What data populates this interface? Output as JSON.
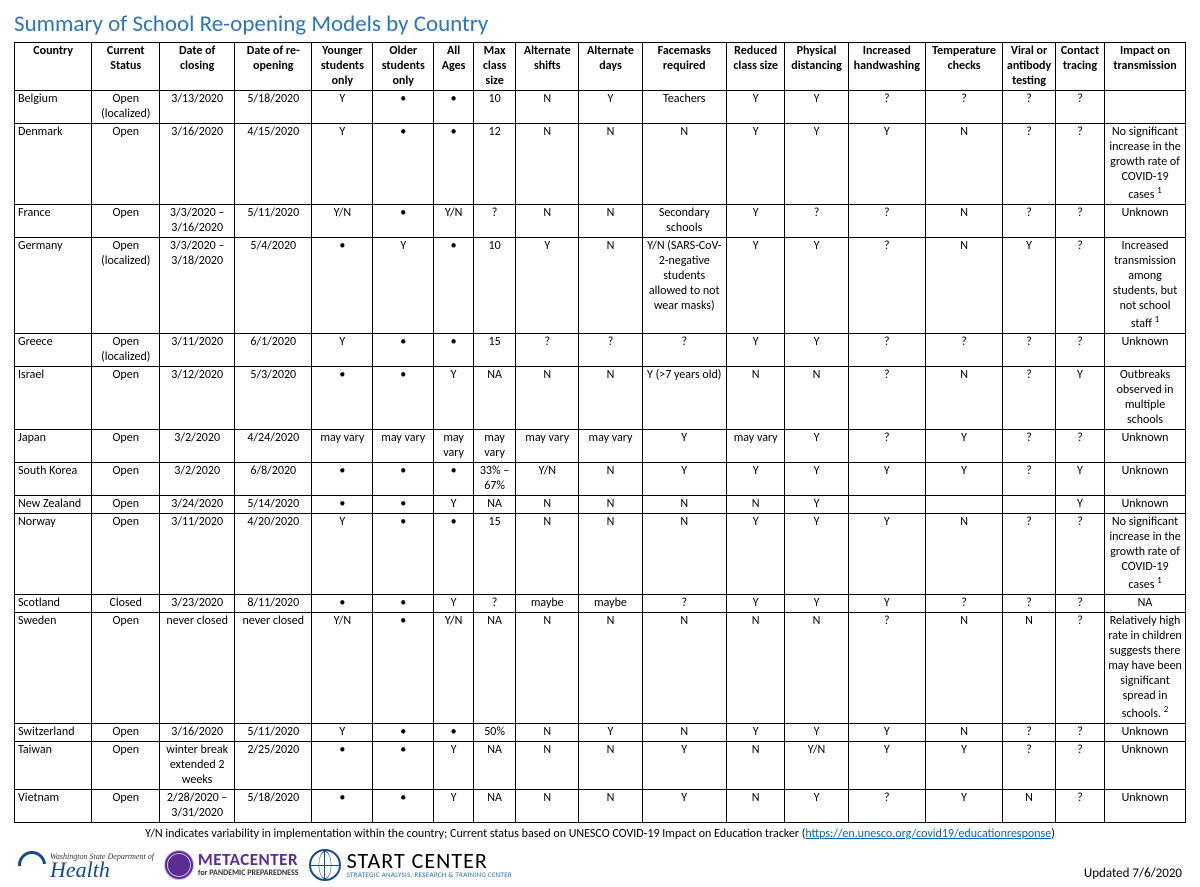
{
  "title": "Summary of School Re-opening Models by Country",
  "columns": [
    "Country",
    "Current Status",
    "Date of closing",
    "Date of re-opening",
    "Younger students only",
    "Older students only",
    "All Ages",
    "Max class size",
    "Alternate shifts",
    "Alternate days",
    "Facemasks required",
    "Reduced class size",
    "Physical distancing",
    "Increased handwashing",
    "Temperature checks",
    "Viral or antibody testing",
    "Contact tracing",
    "Impact on transmission"
  ],
  "col_widths_pct": [
    6.6,
    5.8,
    6.4,
    6.6,
    5.2,
    5.2,
    3.4,
    3.6,
    5.4,
    5.4,
    7.2,
    5.0,
    5.4,
    6.6,
    6.6,
    4.5,
    4.2,
    6.9
  ],
  "rows": [
    [
      "Belgium",
      "Open (localized)",
      "3/13/2020",
      "5/18/2020",
      "Y",
      "•",
      "•",
      "10",
      "N",
      "Y",
      "Teachers",
      "Y",
      "Y",
      "?",
      "?",
      "?",
      "?",
      ""
    ],
    [
      "Denmark",
      "Open",
      "3/16/2020",
      "4/15/2020",
      "Y",
      "•",
      "•",
      "12",
      "N",
      "N",
      "N",
      "Y",
      "Y",
      "Y",
      "N",
      "?",
      "?",
      "No significant increase in the growth rate of COVID-19 cases ¹"
    ],
    [
      "France",
      "Open",
      "3/3/2020 – 3/16/2020",
      "5/11/2020",
      "Y/N",
      "•",
      "Y/N",
      "?",
      "N",
      "N",
      "Secondary schools",
      "Y",
      "?",
      "?",
      "N",
      "?",
      "?",
      "Unknown"
    ],
    [
      "Germany",
      "Open (localized)",
      "3/3/2020 – 3/18/2020",
      "5/4/2020",
      "•",
      "Y",
      "•",
      "10",
      "Y",
      "N",
      "Y/N (SARS-CoV-2-negative students allowed to not wear masks)",
      "Y",
      "Y",
      "?",
      "N",
      "Y",
      "?",
      "Increased transmission among students, but not school staff ¹"
    ],
    [
      "Greece",
      "Open (localized)",
      "3/11/2020",
      "6/1/2020",
      "Y",
      "•",
      "•",
      "15",
      "?",
      "?",
      "?",
      "Y",
      "Y",
      "?",
      "?",
      "?",
      "?",
      "Unknown"
    ],
    [
      "Israel",
      "Open",
      "3/12/2020",
      "5/3/2020",
      "•",
      "•",
      "Y",
      "NA",
      "N",
      "N",
      "Y (>7 years old)",
      "N",
      "N",
      "?",
      "N",
      "?",
      "Y",
      "Outbreaks observed in multiple schools"
    ],
    [
      "Japan",
      "Open",
      "3/2/2020",
      "4/24/2020",
      "may vary",
      "may vary",
      "may vary",
      "may vary",
      "may vary",
      "may vary",
      "Y",
      "may vary",
      "Y",
      "?",
      "Y",
      "?",
      "?",
      "Unknown"
    ],
    [
      "South Korea",
      "Open",
      "3/2/2020",
      "6/8/2020",
      "•",
      "•",
      "•",
      "33% – 67%",
      "Y/N",
      "N",
      "Y",
      "Y",
      "Y",
      "Y",
      "Y",
      "?",
      "Y",
      "Unknown"
    ],
    [
      "New Zealand",
      "Open",
      "3/24/2020",
      "5/14/2020",
      "•",
      "•",
      "Y",
      "NA",
      "N",
      "N",
      "N",
      "N",
      "Y",
      "",
      "",
      "",
      "Y",
      "Unknown"
    ],
    [
      "Norway",
      "Open",
      "3/11/2020",
      "4/20/2020",
      "Y",
      "•",
      "•",
      "15",
      "N",
      "N",
      "N",
      "Y",
      "Y",
      "Y",
      "N",
      "?",
      "?",
      "No significant increase in the growth rate of COVID-19 cases ¹"
    ],
    [
      "Scotland",
      "Closed",
      "3/23/2020",
      "8/11/2020",
      "•",
      "•",
      "Y",
      "?",
      "maybe",
      "maybe",
      "?",
      "Y",
      "Y",
      "Y",
      "?",
      "?",
      "?",
      "NA"
    ],
    [
      "Sweden",
      "Open",
      "never closed",
      "never closed",
      "Y/N",
      "•",
      "Y/N",
      "NA",
      "N",
      "N",
      "N",
      "N",
      "N",
      "?",
      "N",
      "N",
      "?",
      "Relatively high rate in children suggests there may have been significant spread in schools.²"
    ],
    [
      "Switzerland",
      "Open",
      "3/16/2020",
      "5/11/2020",
      "Y",
      "•",
      "•",
      "50%",
      "N",
      "Y",
      "N",
      "Y",
      "Y",
      "Y",
      "N",
      "?",
      "?",
      "Unknown"
    ],
    [
      "Taiwan",
      "Open",
      "winter break extended 2 weeks",
      "2/25/2020",
      "•",
      "•",
      "Y",
      "NA",
      "N",
      "N",
      "Y",
      "N",
      "Y/N",
      "Y",
      "Y",
      "?",
      "?",
      "Unknown"
    ],
    [
      "Vietnam",
      "Open",
      "2/28/2020 – 3/31/2020",
      "5/18/2020",
      "•",
      "•",
      "Y",
      "NA",
      "N",
      "N",
      "Y",
      "N",
      "Y",
      "?",
      "Y",
      "N",
      "?",
      "Unknown"
    ]
  ],
  "footnote_prefix": "Y/N indicates variability in implementation within the country; Current status based on UNESCO COVID-19 Impact on Education tracker (",
  "footnote_url": "https://en.unesco.org/covid19/educationresponse",
  "footnote_suffix": ")",
  "logos": {
    "health_small": "Washington State Department of",
    "health_big": "Health",
    "meta_big": "METACENTER",
    "meta_small": "for PANDEMIC PREPAREDNESS",
    "start_big": "START CENTER",
    "start_small": "STRATEGIC ANALYSIS, RESEARCH & TRAINING CENTER"
  },
  "updated": "Updated 7/6/2020",
  "colors": {
    "title": "#2e74b5",
    "border": "#000000",
    "link": "#0563c1",
    "health": "#164a8a",
    "meta": "#5b2c91"
  }
}
